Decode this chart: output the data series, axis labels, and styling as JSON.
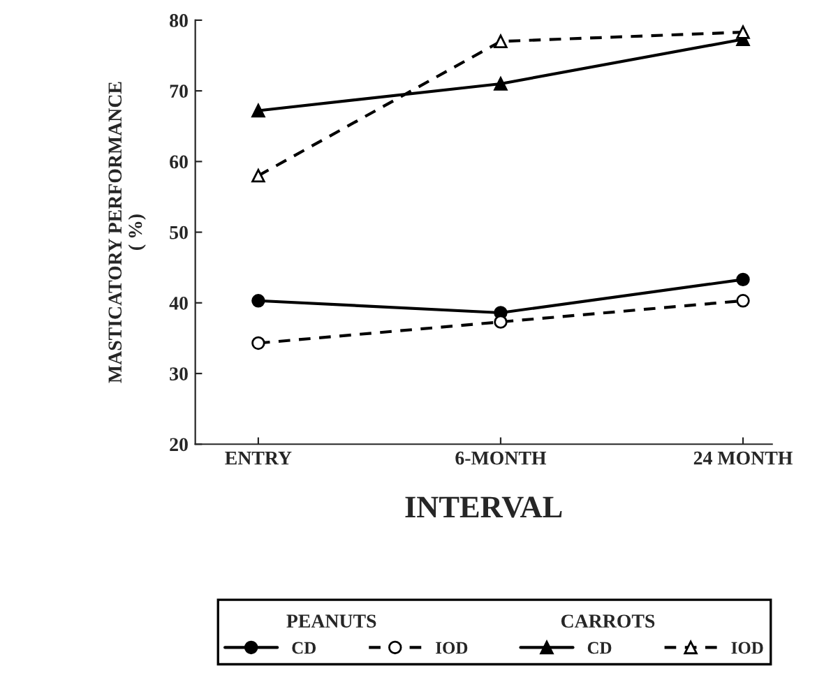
{
  "chart_data": {
    "type": "line",
    "xlabel": "INTERVAL",
    "ylabel": "MASTICATORY PERFORMANCE\n( %)",
    "categories": [
      "ENTRY",
      "6-MONTH",
      "24 MONTH"
    ],
    "series": [
      {
        "name": "CD",
        "color": "#000000",
        "marker": "circle",
        "line_style": "solid",
        "values": [
          40.3,
          38.6,
          43.3
        ]
      },
      {
        "name": "IOD",
        "color": "#000000",
        "marker": "circle",
        "line_style": "dashed",
        "values": [
          34.3,
          37.3,
          40.3
        ]
      },
      {
        "name": "CD",
        "color": "#000000",
        "marker": "triangle",
        "line_style": "solid",
        "values": [
          67.2,
          71.0,
          77.3
        ]
      },
      {
        "name": "IOD",
        "color": "#000000",
        "marker": "triangle",
        "line_style": "dashed",
        "values": [
          58.0,
          77.0,
          78.3
        ]
      }
    ],
    "ylim": [
      20,
      80
    ],
    "yticks": [
      20,
      30,
      40,
      50,
      60,
      70,
      80
    ],
    "grid": false,
    "legend": "bottom",
    "annotations": [
      "PEANUTS",
      "CARROTS"
    ]
  }
}
